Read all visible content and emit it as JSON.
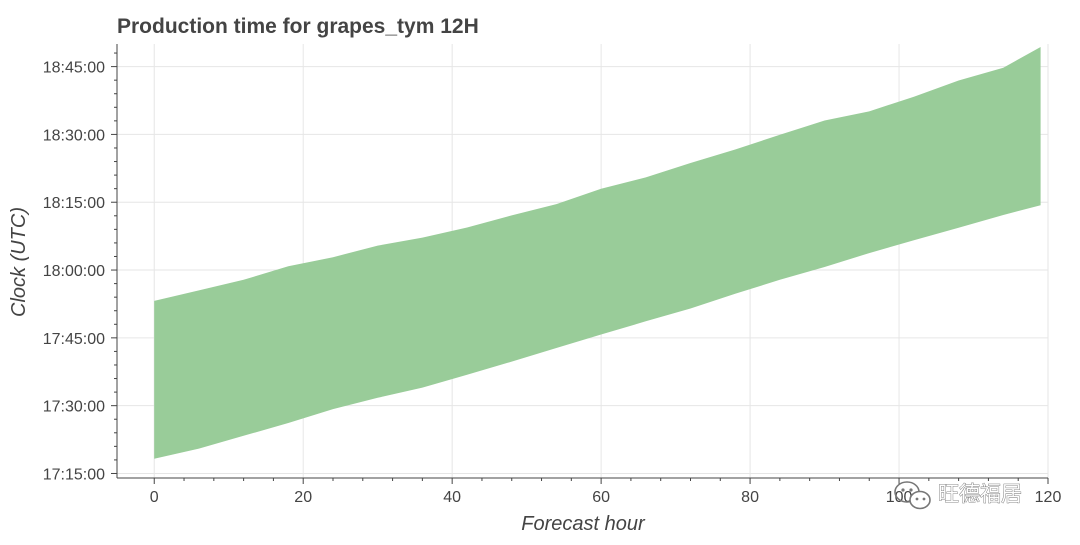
{
  "chart_data": {
    "type": "area",
    "title": "Production time for grapes_tym 12H",
    "xlabel": "Forecast hour",
    "ylabel": "Clock (UTC)",
    "xlim": [
      -5,
      120
    ],
    "ylim": [
      "17:14:00",
      "18:50:00"
    ],
    "x_ticks": [
      0,
      20,
      40,
      60,
      80,
      100,
      120
    ],
    "x_tick_labels": [
      "0",
      "20",
      "40",
      "60",
      "80",
      "100",
      "120"
    ],
    "y_ticks": [
      "17:15:00",
      "17:30:00",
      "17:45:00",
      "18:00:00",
      "18:15:00",
      "18:30:00",
      "18:45:00"
    ],
    "grid": true,
    "fill_color": "#99cc99",
    "series": [
      {
        "x": [
          0,
          6,
          12,
          18,
          24,
          30,
          36,
          42,
          48,
          54,
          60,
          66,
          72,
          78,
          84,
          90,
          96,
          102,
          108,
          114,
          119
        ],
        "lower": [
          "17:18:15",
          "17:20:30",
          "17:23:20",
          "17:26:10",
          "17:29:15",
          "17:31:45",
          "17:34:00",
          "17:36:50",
          "17:39:45",
          "17:42:45",
          "17:45:45",
          "17:48:40",
          "17:51:30",
          "17:54:45",
          "17:57:50",
          "18:00:40",
          "18:03:45",
          "18:06:35",
          "18:09:20",
          "18:12:10",
          "18:14:20"
        ],
        "upper": [
          "17:53:10",
          "17:55:30",
          "17:57:50",
          "18:00:50",
          "18:02:50",
          "18:05:25",
          "18:07:10",
          "18:09:25",
          "18:12:05",
          "18:14:35",
          "18:18:00",
          "18:20:30",
          "18:23:40",
          "18:26:40",
          "18:29:55",
          "18:33:05",
          "18:35:05",
          "18:38:20",
          "18:41:55",
          "18:44:45",
          "18:49:20"
        ]
      }
    ]
  },
  "watermark": {
    "text": "旺德福居",
    "icon": "wechat-icon"
  }
}
